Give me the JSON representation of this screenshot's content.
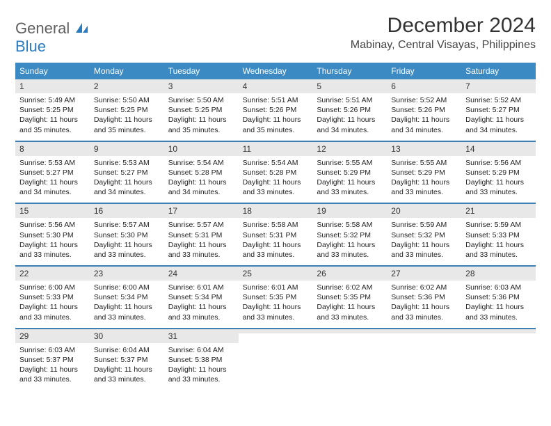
{
  "branding": {
    "line1": "General",
    "line2": "Blue"
  },
  "header": {
    "month_title": "December 2024",
    "location": "Mabinay, Central Visayas, Philippines"
  },
  "colors": {
    "header_bg": "#3b8ac4",
    "header_text": "#ffffff",
    "week_border": "#3b7fb5",
    "daynum_bg": "#e8e8e8",
    "logo_gray": "#5f5f5f",
    "logo_blue": "#2b7bbf",
    "text": "#222222"
  },
  "day_labels": [
    "Sunday",
    "Monday",
    "Tuesday",
    "Wednesday",
    "Thursday",
    "Friday",
    "Saturday"
  ],
  "weeks": [
    [
      {
        "n": "1",
        "sr": "Sunrise: 5:49 AM",
        "ss": "Sunset: 5:25 PM",
        "dl": "Daylight: 11 hours and 35 minutes."
      },
      {
        "n": "2",
        "sr": "Sunrise: 5:50 AM",
        "ss": "Sunset: 5:25 PM",
        "dl": "Daylight: 11 hours and 35 minutes."
      },
      {
        "n": "3",
        "sr": "Sunrise: 5:50 AM",
        "ss": "Sunset: 5:25 PM",
        "dl": "Daylight: 11 hours and 35 minutes."
      },
      {
        "n": "4",
        "sr": "Sunrise: 5:51 AM",
        "ss": "Sunset: 5:26 PM",
        "dl": "Daylight: 11 hours and 35 minutes."
      },
      {
        "n": "5",
        "sr": "Sunrise: 5:51 AM",
        "ss": "Sunset: 5:26 PM",
        "dl": "Daylight: 11 hours and 34 minutes."
      },
      {
        "n": "6",
        "sr": "Sunrise: 5:52 AM",
        "ss": "Sunset: 5:26 PM",
        "dl": "Daylight: 11 hours and 34 minutes."
      },
      {
        "n": "7",
        "sr": "Sunrise: 5:52 AM",
        "ss": "Sunset: 5:27 PM",
        "dl": "Daylight: 11 hours and 34 minutes."
      }
    ],
    [
      {
        "n": "8",
        "sr": "Sunrise: 5:53 AM",
        "ss": "Sunset: 5:27 PM",
        "dl": "Daylight: 11 hours and 34 minutes."
      },
      {
        "n": "9",
        "sr": "Sunrise: 5:53 AM",
        "ss": "Sunset: 5:27 PM",
        "dl": "Daylight: 11 hours and 34 minutes."
      },
      {
        "n": "10",
        "sr": "Sunrise: 5:54 AM",
        "ss": "Sunset: 5:28 PM",
        "dl": "Daylight: 11 hours and 34 minutes."
      },
      {
        "n": "11",
        "sr": "Sunrise: 5:54 AM",
        "ss": "Sunset: 5:28 PM",
        "dl": "Daylight: 11 hours and 33 minutes."
      },
      {
        "n": "12",
        "sr": "Sunrise: 5:55 AM",
        "ss": "Sunset: 5:29 PM",
        "dl": "Daylight: 11 hours and 33 minutes."
      },
      {
        "n": "13",
        "sr": "Sunrise: 5:55 AM",
        "ss": "Sunset: 5:29 PM",
        "dl": "Daylight: 11 hours and 33 minutes."
      },
      {
        "n": "14",
        "sr": "Sunrise: 5:56 AM",
        "ss": "Sunset: 5:29 PM",
        "dl": "Daylight: 11 hours and 33 minutes."
      }
    ],
    [
      {
        "n": "15",
        "sr": "Sunrise: 5:56 AM",
        "ss": "Sunset: 5:30 PM",
        "dl": "Daylight: 11 hours and 33 minutes."
      },
      {
        "n": "16",
        "sr": "Sunrise: 5:57 AM",
        "ss": "Sunset: 5:30 PM",
        "dl": "Daylight: 11 hours and 33 minutes."
      },
      {
        "n": "17",
        "sr": "Sunrise: 5:57 AM",
        "ss": "Sunset: 5:31 PM",
        "dl": "Daylight: 11 hours and 33 minutes."
      },
      {
        "n": "18",
        "sr": "Sunrise: 5:58 AM",
        "ss": "Sunset: 5:31 PM",
        "dl": "Daylight: 11 hours and 33 minutes."
      },
      {
        "n": "19",
        "sr": "Sunrise: 5:58 AM",
        "ss": "Sunset: 5:32 PM",
        "dl": "Daylight: 11 hours and 33 minutes."
      },
      {
        "n": "20",
        "sr": "Sunrise: 5:59 AM",
        "ss": "Sunset: 5:32 PM",
        "dl": "Daylight: 11 hours and 33 minutes."
      },
      {
        "n": "21",
        "sr": "Sunrise: 5:59 AM",
        "ss": "Sunset: 5:33 PM",
        "dl": "Daylight: 11 hours and 33 minutes."
      }
    ],
    [
      {
        "n": "22",
        "sr": "Sunrise: 6:00 AM",
        "ss": "Sunset: 5:33 PM",
        "dl": "Daylight: 11 hours and 33 minutes."
      },
      {
        "n": "23",
        "sr": "Sunrise: 6:00 AM",
        "ss": "Sunset: 5:34 PM",
        "dl": "Daylight: 11 hours and 33 minutes."
      },
      {
        "n": "24",
        "sr": "Sunrise: 6:01 AM",
        "ss": "Sunset: 5:34 PM",
        "dl": "Daylight: 11 hours and 33 minutes."
      },
      {
        "n": "25",
        "sr": "Sunrise: 6:01 AM",
        "ss": "Sunset: 5:35 PM",
        "dl": "Daylight: 11 hours and 33 minutes."
      },
      {
        "n": "26",
        "sr": "Sunrise: 6:02 AM",
        "ss": "Sunset: 5:35 PM",
        "dl": "Daylight: 11 hours and 33 minutes."
      },
      {
        "n": "27",
        "sr": "Sunrise: 6:02 AM",
        "ss": "Sunset: 5:36 PM",
        "dl": "Daylight: 11 hours and 33 minutes."
      },
      {
        "n": "28",
        "sr": "Sunrise: 6:03 AM",
        "ss": "Sunset: 5:36 PM",
        "dl": "Daylight: 11 hours and 33 minutes."
      }
    ],
    [
      {
        "n": "29",
        "sr": "Sunrise: 6:03 AM",
        "ss": "Sunset: 5:37 PM",
        "dl": "Daylight: 11 hours and 33 minutes."
      },
      {
        "n": "30",
        "sr": "Sunrise: 6:04 AM",
        "ss": "Sunset: 5:37 PM",
        "dl": "Daylight: 11 hours and 33 minutes."
      },
      {
        "n": "31",
        "sr": "Sunrise: 6:04 AM",
        "ss": "Sunset: 5:38 PM",
        "dl": "Daylight: 11 hours and 33 minutes."
      },
      {
        "empty": true
      },
      {
        "empty": true
      },
      {
        "empty": true
      },
      {
        "empty": true
      }
    ]
  ]
}
